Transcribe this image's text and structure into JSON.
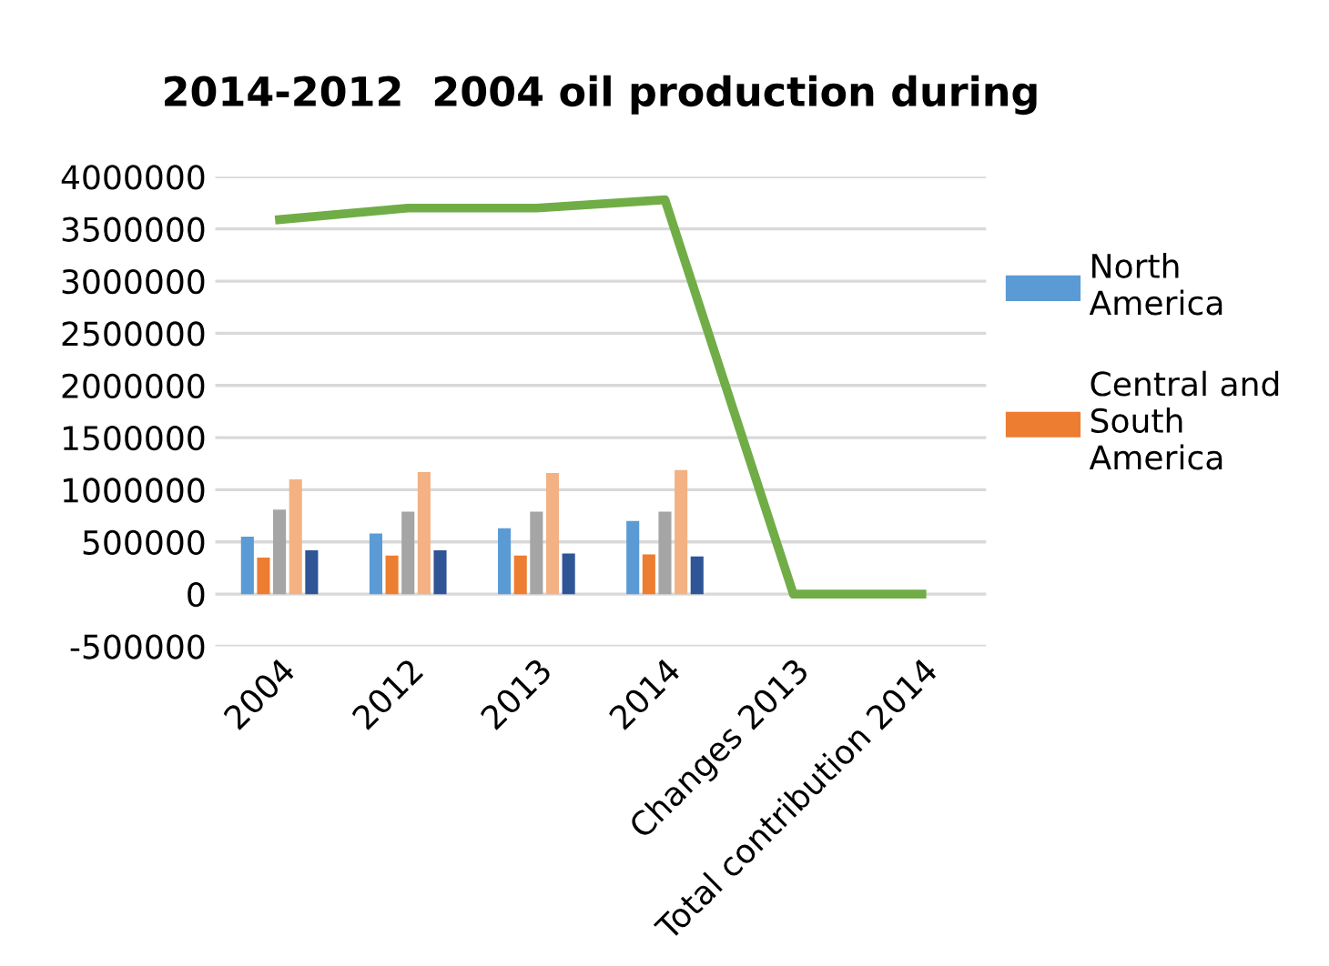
{
  "chart_data": {
    "type": "bar",
    "title": "2014-2012  2004 oil production during",
    "categories": [
      "2004",
      "2012",
      "2013",
      "2014",
      "Changes 2013",
      "Total contribution 2014"
    ],
    "series": [
      {
        "name": "North America",
        "color": "#5b9bd5",
        "values": [
          550000,
          580000,
          630000,
          700000,
          null,
          null
        ]
      },
      {
        "name": "Central and South America",
        "color": "#ed7d31",
        "values": [
          350000,
          370000,
          370000,
          380000,
          null,
          null
        ]
      },
      {
        "color": "#a5a5a5",
        "values": [
          810000,
          790000,
          790000,
          790000,
          null,
          null
        ]
      },
      {
        "color": "#f4b183",
        "values": [
          1100000,
          1170000,
          1160000,
          1190000,
          null,
          null
        ]
      },
      {
        "color": "#2f5597",
        "values": [
          420000,
          420000,
          390000,
          360000,
          null,
          null
        ]
      },
      {
        "type": "line",
        "color": "#70ad47",
        "values": [
          3590000,
          3700000,
          3700000,
          3780000,
          0,
          0
        ]
      }
    ],
    "ylim": [
      -500000,
      4000000
    ],
    "yticks": [
      -500000,
      0,
      500000,
      1000000,
      1500000,
      2000000,
      2500000,
      3000000,
      3500000,
      4000000
    ],
    "grid": "y",
    "legend": "right",
    "marker": "none",
    "line_style": "solid"
  }
}
